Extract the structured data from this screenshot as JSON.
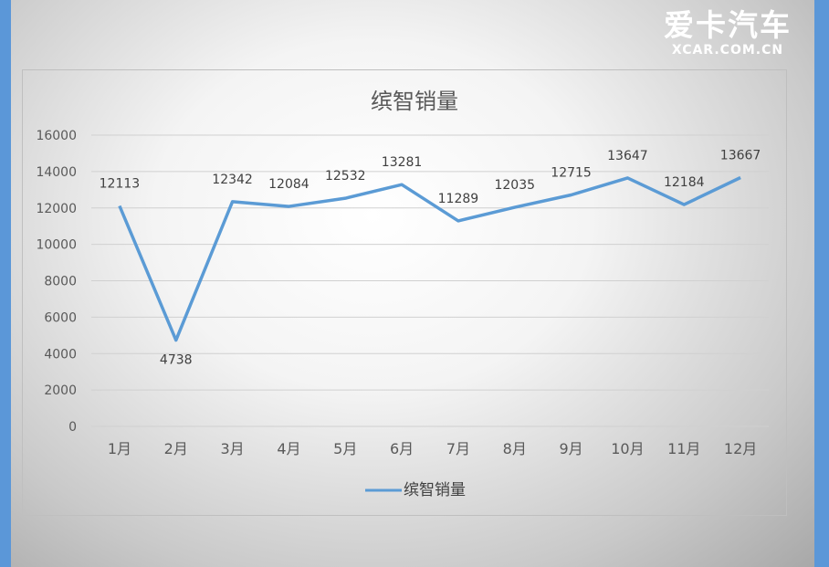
{
  "watermark": {
    "brand_cn": "爱卡汽车",
    "brand_en": "XCAR.COM.CN"
  },
  "chart_data": {
    "type": "line",
    "title": "缤智销量",
    "categories": [
      "1月",
      "2月",
      "3月",
      "4月",
      "5月",
      "6月",
      "7月",
      "8月",
      "9月",
      "10月",
      "11月",
      "12月"
    ],
    "series": [
      {
        "name": "缤智销量",
        "color": "#5b9bd5",
        "values": [
          12113,
          4738,
          12342,
          12084,
          12532,
          13281,
          11289,
          12035,
          12715,
          13647,
          12184,
          13667
        ]
      }
    ],
    "ylim": [
      0,
      16000
    ],
    "yticks": [
      0,
      2000,
      4000,
      6000,
      8000,
      10000,
      12000,
      14000,
      16000
    ],
    "xlabel": "",
    "ylabel": "",
    "grid": true,
    "legend": "bottom",
    "data_labels": true
  }
}
